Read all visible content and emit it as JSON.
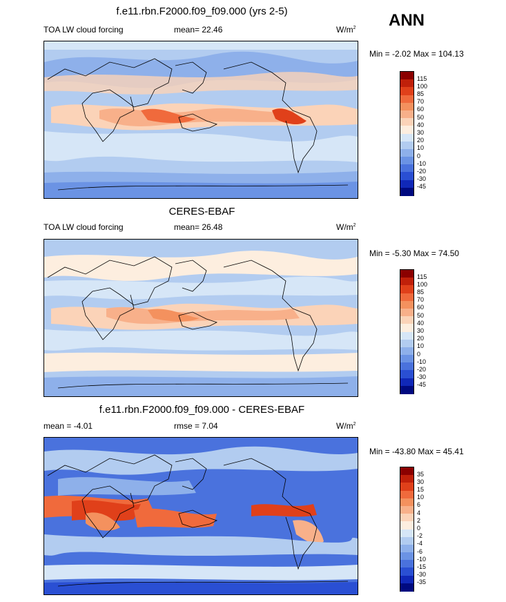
{
  "season": "ANN",
  "panels": [
    {
      "title": "f.e11.rbn.F2000.f09_f09.000 (yrs 2-5)",
      "left_label": "TOA LW cloud forcing",
      "center_label": "mean=  22.46",
      "unit_base": "W/m",
      "unit_sup": "2",
      "minmax": "Min =  -2.02 Max = 104.13",
      "colorbar": {
        "labels": [
          "115",
          "100",
          "85",
          "70",
          "60",
          "50",
          "40",
          "30",
          "20",
          "10",
          "0",
          "-10",
          "-20",
          "-30",
          "-45"
        ],
        "colors": [
          "#8b0000",
          "#c0200a",
          "#e0401a",
          "#f06a3c",
          "#f4915e",
          "#f8b08a",
          "#fbd3b8",
          "#fdeedf",
          "#d6e6f7",
          "#b2ccf0",
          "#8eb0ea",
          "#6b93e4",
          "#4a72dd",
          "#2a4fd3",
          "#1028b8",
          "#000a80"
        ]
      }
    },
    {
      "title": "CERES-EBAF",
      "left_label": "TOA LW cloud forcing",
      "center_label": "mean=  26.48",
      "unit_base": "W/m",
      "unit_sup": "2",
      "minmax": "Min =  -5.30 Max =  74.50",
      "colorbar": {
        "labels": [
          "115",
          "100",
          "85",
          "70",
          "60",
          "50",
          "40",
          "30",
          "20",
          "10",
          "0",
          "-10",
          "-20",
          "-30",
          "-45"
        ],
        "colors": [
          "#8b0000",
          "#c0200a",
          "#e0401a",
          "#f06a3c",
          "#f4915e",
          "#f8b08a",
          "#fbd3b8",
          "#fdeedf",
          "#d6e6f7",
          "#b2ccf0",
          "#8eb0ea",
          "#6b93e4",
          "#4a72dd",
          "#2a4fd3",
          "#1028b8",
          "#000a80"
        ]
      }
    },
    {
      "title": "f.e11.rbn.F2000.f09_f09.000 - CERES-EBAF",
      "left_label": "mean =  -4.01",
      "center_label": "rmse =   7.04",
      "unit_base": "W/m",
      "unit_sup": "2",
      "minmax": "Min = -43.80 Max =  45.41",
      "colorbar": {
        "labels": [
          "35",
          "30",
          "15",
          "10",
          "6",
          "4",
          "2",
          "0",
          "-2",
          "-4",
          "-6",
          "-10",
          "-15",
          "-30",
          "-35"
        ],
        "colors": [
          "#8b0000",
          "#c0200a",
          "#e0401a",
          "#f06a3c",
          "#f4915e",
          "#f8b08a",
          "#fbd3b8",
          "#fdeedf",
          "#d6e6f7",
          "#b2ccf0",
          "#8eb0ea",
          "#6b93e4",
          "#4a72dd",
          "#2a4fd3",
          "#1028b8",
          "#000a80"
        ]
      }
    }
  ]
}
